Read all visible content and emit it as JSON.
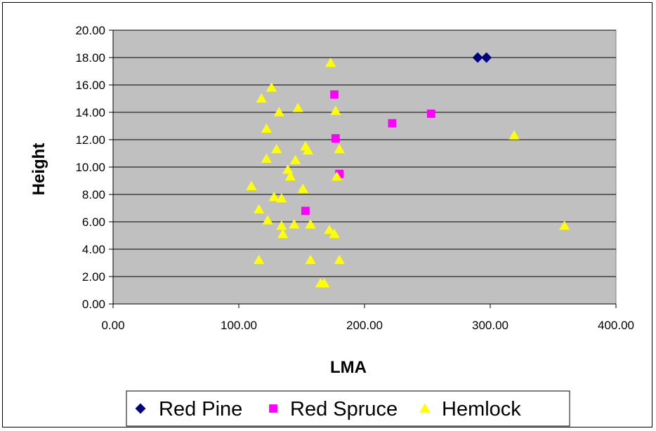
{
  "chart_data": {
    "type": "scatter",
    "title": "",
    "xlabel": "LMA",
    "ylabel": "Height",
    "xlim": [
      0,
      400
    ],
    "ylim": [
      0,
      20
    ],
    "x_ticks": [
      "0.00",
      "100.00",
      "200.00",
      "300.00",
      "400.00"
    ],
    "y_ticks": [
      "0.00",
      "2.00",
      "4.00",
      "6.00",
      "8.00",
      "10.00",
      "12.00",
      "14.00",
      "16.00",
      "18.00",
      "20.00"
    ],
    "grid": "horizontal",
    "plot_background": "#c0c0c0",
    "legend_position": "bottom",
    "series": [
      {
        "name": "Red Pine",
        "marker": "diamond",
        "color": "#000080",
        "points": [
          [
            290,
            18
          ],
          [
            297,
            18
          ]
        ]
      },
      {
        "name": "Red Spruce",
        "marker": "square",
        "color": "#ff00ff",
        "points": [
          [
            176,
            15.3
          ],
          [
            253,
            13.9
          ],
          [
            222,
            13.2
          ],
          [
            177,
            12.1
          ],
          [
            180,
            9.5
          ],
          [
            153,
            6.8
          ]
        ]
      },
      {
        "name": "Hemlock",
        "marker": "triangle",
        "color": "#ffff00",
        "points": [
          [
            173,
            17.6
          ],
          [
            126,
            15.8
          ],
          [
            118,
            15.0
          ],
          [
            147,
            14.3
          ],
          [
            132,
            14.0
          ],
          [
            177,
            14.1
          ],
          [
            122,
            12.8
          ],
          [
            319,
            12.3
          ],
          [
            130,
            11.3
          ],
          [
            153,
            11.5
          ],
          [
            155,
            11.2
          ],
          [
            180,
            11.3
          ],
          [
            122,
            10.6
          ],
          [
            145,
            10.5
          ],
          [
            139,
            9.8
          ],
          [
            141,
            9.3
          ],
          [
            178,
            9.3
          ],
          [
            110,
            8.6
          ],
          [
            151,
            8.4
          ],
          [
            128,
            7.8
          ],
          [
            134,
            7.7
          ],
          [
            116,
            6.9
          ],
          [
            123,
            6.1
          ],
          [
            134,
            5.7
          ],
          [
            144,
            5.8
          ],
          [
            157,
            5.8
          ],
          [
            172,
            5.4
          ],
          [
            176,
            5.1
          ],
          [
            135,
            5.1
          ],
          [
            359,
            5.7
          ],
          [
            116,
            3.2
          ],
          [
            157,
            3.2
          ],
          [
            180,
            3.2
          ],
          [
            165,
            1.5
          ],
          [
            168,
            1.5
          ]
        ]
      }
    ]
  }
}
